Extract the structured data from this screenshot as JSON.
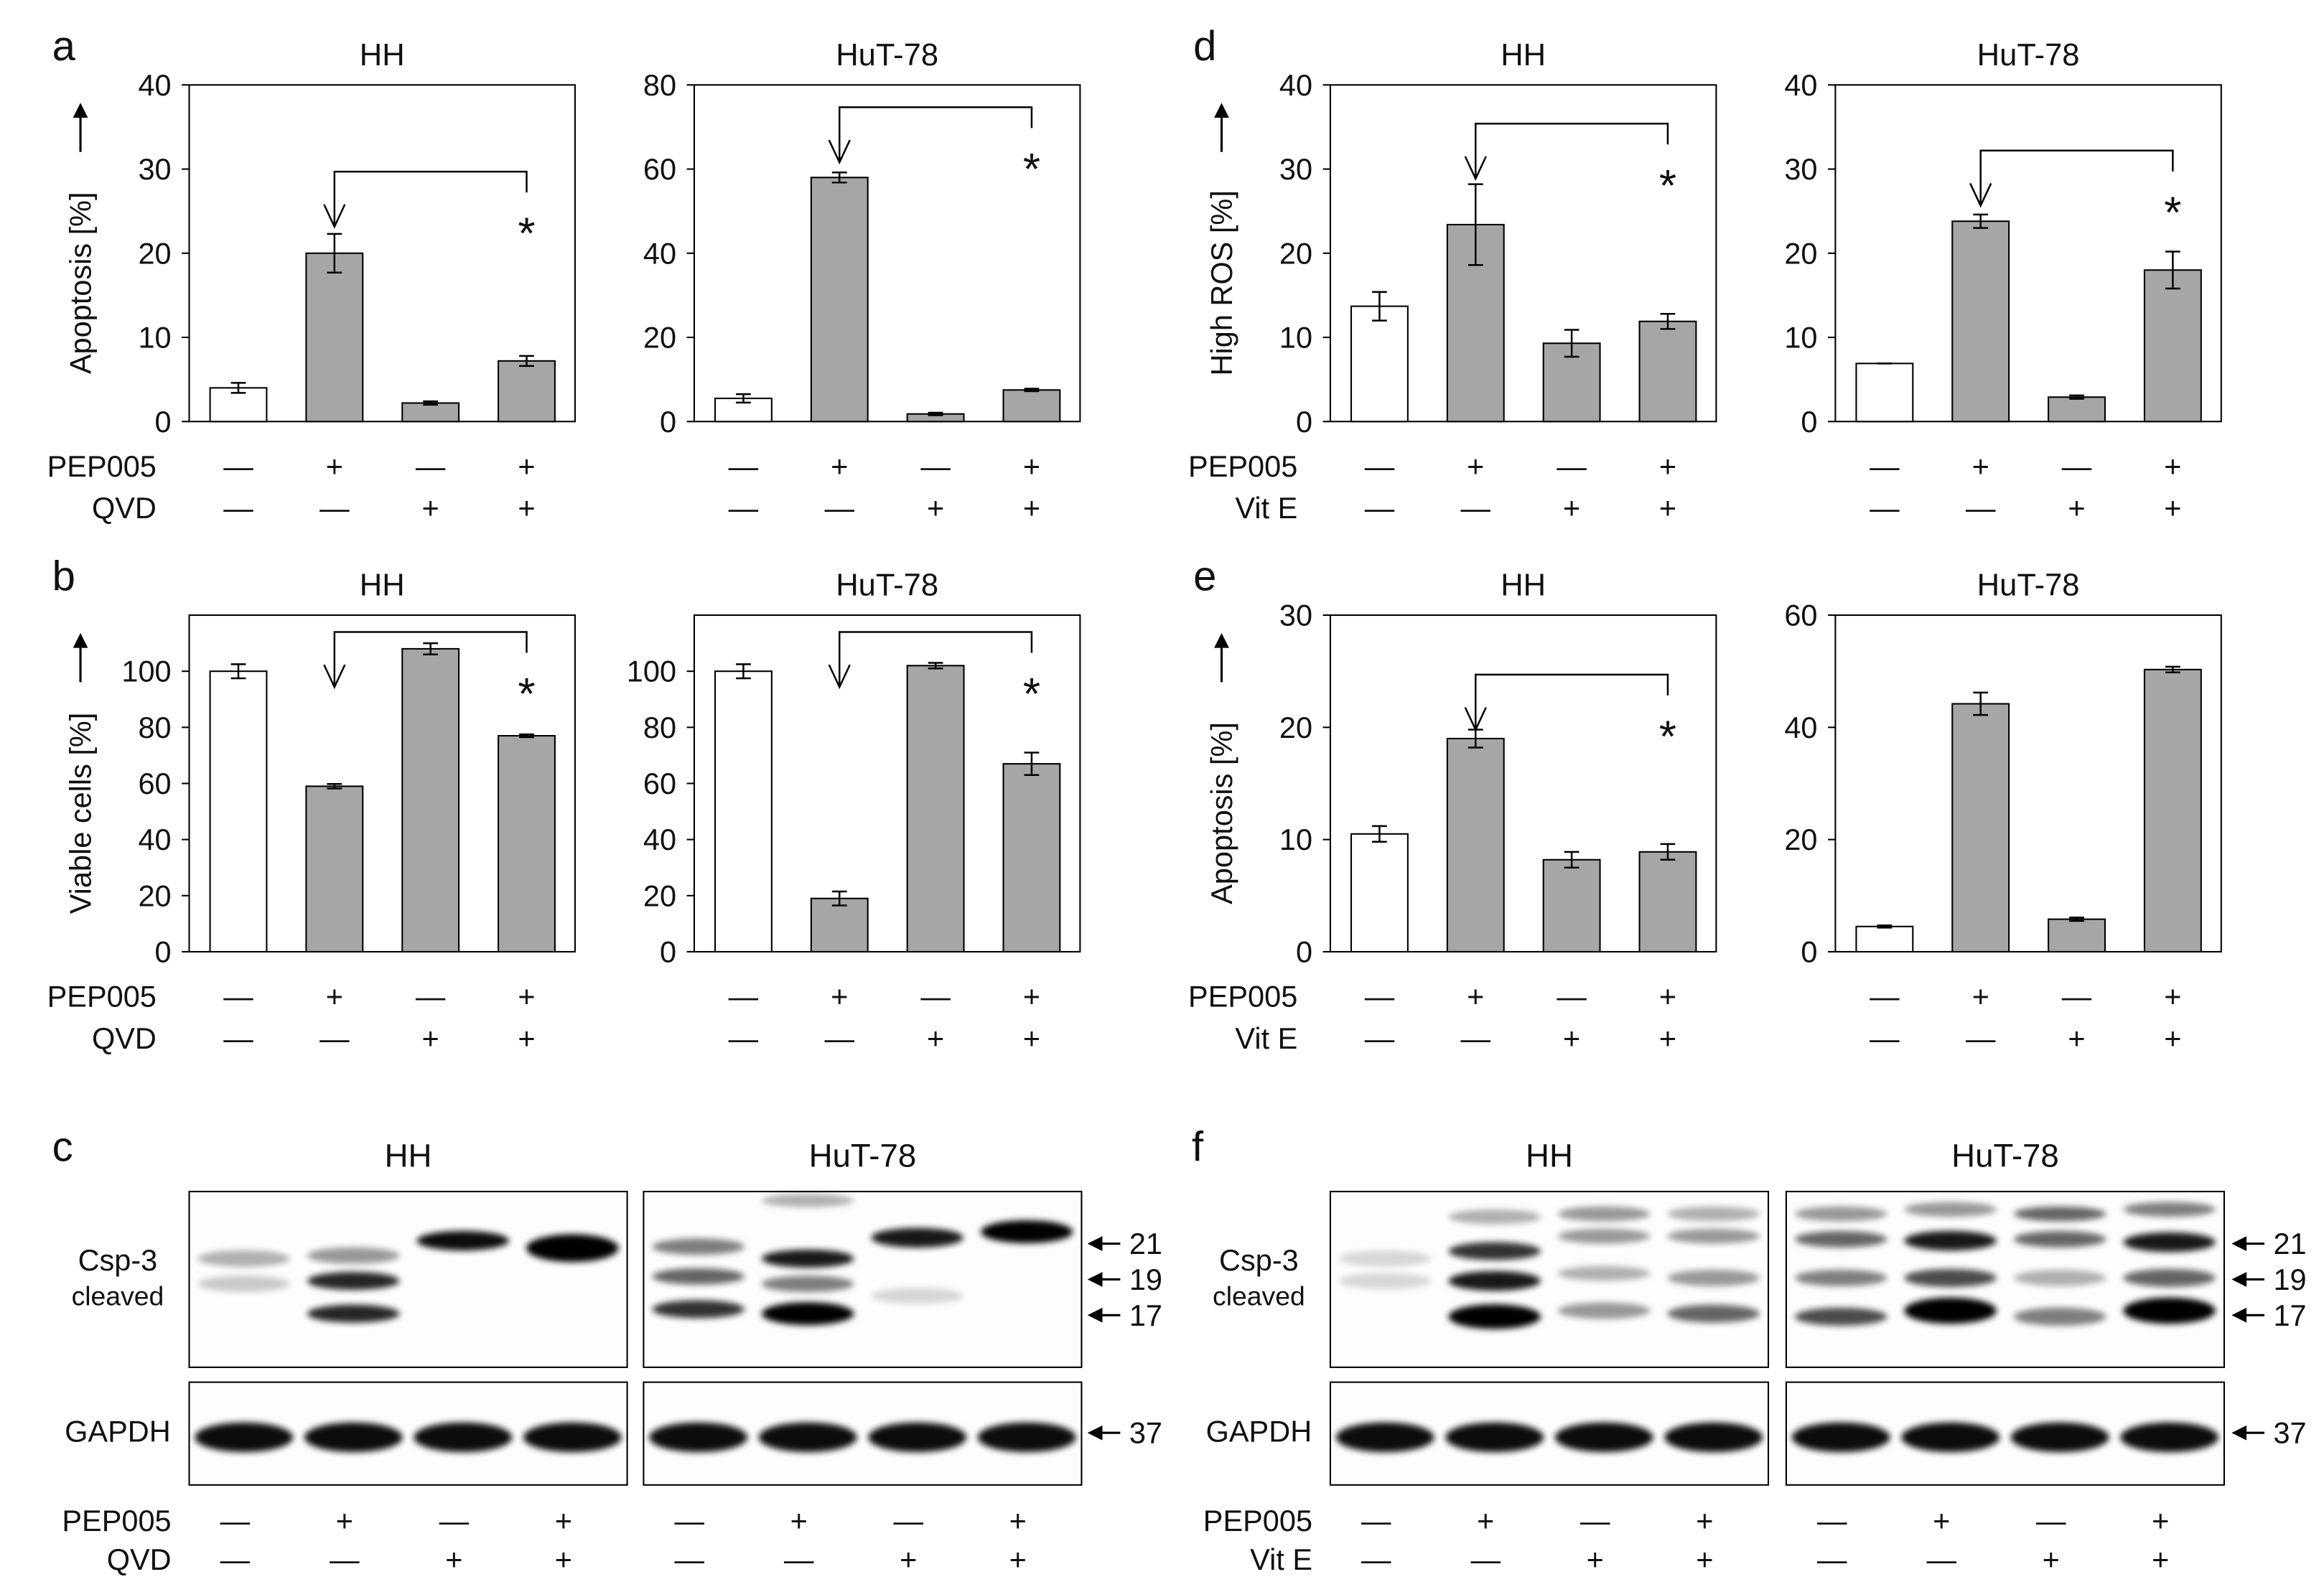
{
  "chart_data": [
    {
      "type": "bar",
      "panel": "a",
      "title": "HH",
      "y_label": "Apoptosis [%]",
      "ylim": [
        0,
        40
      ],
      "yticks": [
        0,
        10,
        20,
        30,
        40
      ],
      "values": [
        4,
        20,
        2.2,
        7.2
      ],
      "errors": [
        0.6,
        2.3,
        0.2,
        0.6
      ],
      "colors": [
        "#ffffff",
        "#a6a6a6",
        "#a6a6a6",
        "#a6a6a6"
      ],
      "bracket_y": 29.7,
      "annotation": "*",
      "treatments": [
        {
          "name": "PEP005",
          "signs": [
            "—",
            "+",
            "—",
            "+"
          ]
        },
        {
          "name": "QVD",
          "signs": [
            "—",
            "—",
            "+",
            "+"
          ]
        }
      ]
    },
    {
      "type": "bar",
      "title": "HuT-78",
      "ylim": [
        0,
        80
      ],
      "yticks": [
        0,
        20,
        40,
        60,
        80
      ],
      "values": [
        5.5,
        58,
        1.8,
        7.5
      ],
      "errors": [
        1,
        1.2,
        0.3,
        0.3
      ],
      "colors": [
        "#ffffff",
        "#a6a6a6",
        "#a6a6a6",
        "#a6a6a6"
      ],
      "bracket_y": 74.7,
      "annotation": "*",
      "treatments": [
        {
          "signs": [
            "—",
            "+",
            "—",
            "+"
          ]
        },
        {
          "signs": [
            "—",
            "—",
            "+",
            "+"
          ]
        }
      ]
    },
    {
      "type": "bar",
      "panel": "b",
      "title": "HH",
      "y_label": "Viable cells [%]",
      "ylim": [
        0,
        120
      ],
      "yticks": [
        0,
        20,
        40,
        60,
        80,
        100
      ],
      "values": [
        100,
        59,
        108,
        77
      ],
      "errors": [
        2.5,
        0.8,
        2,
        0.5
      ],
      "colors": [
        "#ffffff",
        "#a6a6a6",
        "#a6a6a6",
        "#a6a6a6"
      ],
      "bracket_y": 114,
      "annotation": "*",
      "treatments": [
        {
          "name": "PEP005",
          "signs": [
            "—",
            "+",
            "—",
            "+"
          ]
        },
        {
          "name": "QVD",
          "signs": [
            "—",
            "—",
            "+",
            "+"
          ]
        }
      ]
    },
    {
      "type": "bar",
      "title": "HuT-78",
      "ylim": [
        0,
        120
      ],
      "yticks": [
        0,
        20,
        40,
        60,
        80,
        100
      ],
      "values": [
        100,
        19,
        102,
        67
      ],
      "errors": [
        2.5,
        2.5,
        1,
        4
      ],
      "colors": [
        "#ffffff",
        "#a6a6a6",
        "#a6a6a6",
        "#a6a6a6"
      ],
      "bracket_y": 114,
      "annotation": "*",
      "treatments": [
        {
          "signs": [
            "—",
            "+",
            "—",
            "+"
          ]
        },
        {
          "signs": [
            "—",
            "—",
            "+",
            "+"
          ]
        }
      ]
    },
    {
      "type": "bar",
      "panel": "d",
      "title": "HH",
      "y_label": "High ROS [%]",
      "ylim": [
        0,
        40
      ],
      "yticks": [
        0,
        10,
        20,
        30,
        40
      ],
      "values": [
        13.7,
        23.4,
        9.3,
        11.9
      ],
      "errors": [
        1.7,
        4.8,
        1.6,
        0.9
      ],
      "colors": [
        "#ffffff",
        "#a6a6a6",
        "#a6a6a6",
        "#a6a6a6"
      ],
      "bracket_y": 35.4,
      "annotation": "*",
      "treatments": [
        {
          "name": "PEP005",
          "signs": [
            "—",
            "+",
            "—",
            "+"
          ]
        },
        {
          "name": "Vit E",
          "signs": [
            "—",
            "—",
            "+",
            "+"
          ]
        }
      ]
    },
    {
      "type": "bar",
      "title": "HuT-78",
      "ylim": [
        0,
        40
      ],
      "yticks": [
        0,
        10,
        20,
        30,
        40
      ],
      "values": [
        6.9,
        23.8,
        2.9,
        18
      ],
      "errors": [
        0,
        0.8,
        0.2,
        2.2
      ],
      "colors": [
        "#ffffff",
        "#a6a6a6",
        "#a6a6a6",
        "#a6a6a6"
      ],
      "bracket_y": 32.2,
      "annotation": "*",
      "treatments": [
        {
          "signs": [
            "—",
            "+",
            "—",
            "+"
          ]
        },
        {
          "signs": [
            "—",
            "—",
            "+",
            "+"
          ]
        }
      ]
    },
    {
      "type": "bar",
      "panel": "e",
      "title": "HH",
      "y_label": "Apoptosis [%]",
      "ylim": [
        0,
        30
      ],
      "yticks": [
        0,
        10,
        20,
        30
      ],
      "values": [
        10.5,
        19,
        8.2,
        8.9
      ],
      "errors": [
        0.7,
        0.8,
        0.7,
        0.7
      ],
      "colors": [
        "#ffffff",
        "#a6a6a6",
        "#a6a6a6",
        "#a6a6a6"
      ],
      "bracket_y": 24.7,
      "annotation": "*",
      "treatments": [
        {
          "name": "PEP005",
          "signs": [
            "—",
            "+",
            "—",
            "+"
          ]
        },
        {
          "name": "Vit E",
          "signs": [
            "—",
            "—",
            "+",
            "+"
          ]
        }
      ]
    },
    {
      "type": "bar",
      "title": "HuT-78",
      "ylim": [
        0,
        60
      ],
      "yticks": [
        0,
        20,
        40,
        60
      ],
      "values": [
        4.5,
        44.2,
        5.8,
        50.3
      ],
      "errors": [
        0.2,
        2,
        0.3,
        0.5
      ],
      "colors": [
        "#ffffff",
        "#a6a6a6",
        "#a6a6a6",
        "#a6a6a6"
      ],
      "treatments": [
        {
          "signs": [
            "—",
            "+",
            "—",
            "+"
          ]
        },
        {
          "signs": [
            "—",
            "—",
            "+",
            "+"
          ]
        }
      ]
    }
  ],
  "blots": [
    {
      "letter": "c",
      "titles": [
        "HH",
        "HuT-78"
      ],
      "labels": [
        "Csp-3",
        "cleaved",
        "GAPDH"
      ],
      "markers": [
        21,
        19,
        17,
        37
      ],
      "treatments": [
        {
          "name": "PEP005",
          "signs": [
            "—",
            "+",
            "—",
            "+",
            "—",
            "+",
            "—",
            "+"
          ]
        },
        {
          "name": "QVD",
          "signs": [
            "—",
            "—",
            "+",
            "+",
            "—",
            "—",
            "+",
            "+"
          ]
        }
      ]
    },
    {
      "letter": "f",
      "titles": [
        "HH",
        "HuT-78"
      ],
      "labels": [
        "Csp-3",
        "cleaved",
        "GAPDH"
      ],
      "markers": [
        21,
        19,
        17,
        37
      ],
      "treatments": [
        {
          "name": "PEP005",
          "signs": [
            "—",
            "+",
            "—",
            "+",
            "—",
            "+",
            "—",
            "+"
          ]
        },
        {
          "name": "Vit E",
          "signs": [
            "—",
            "—",
            "+",
            "+",
            "—",
            "—",
            "+",
            "+"
          ]
        }
      ]
    }
  ]
}
